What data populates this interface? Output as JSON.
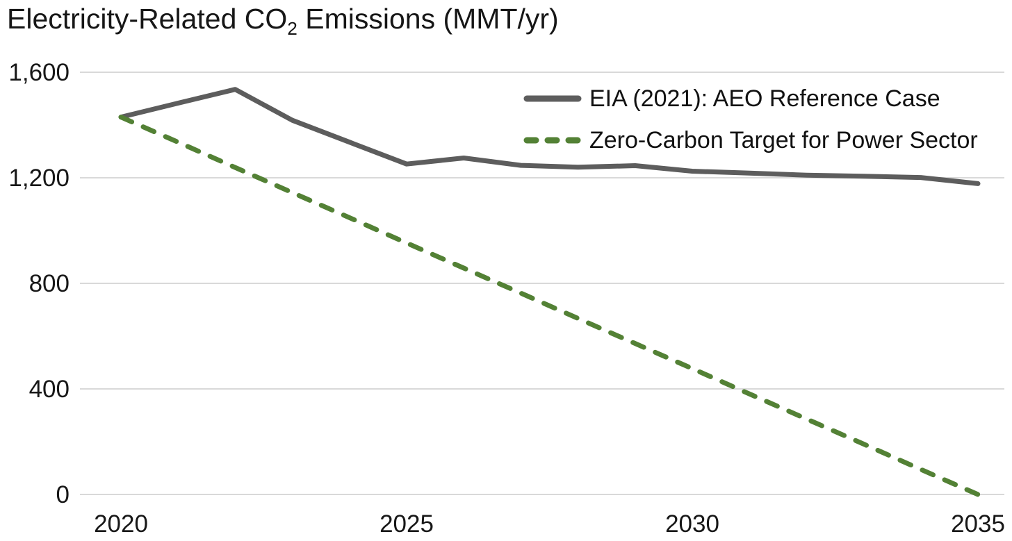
{
  "title": {
    "prefix": "Electricity-Related CO",
    "sub": "2",
    "suffix": " Emissions (MMT/yr)"
  },
  "legend": [
    {
      "label": "EIA (2021): AEO Reference Case",
      "color": "#5d5d5d",
      "style": "solid"
    },
    {
      "label": "Zero-Carbon Target for Power Sector",
      "color": "#538135",
      "style": "dashed"
    }
  ],
  "colors": {
    "gridline": "#d9d9d9",
    "eia_line": "#5d5d5d",
    "target_line": "#538135",
    "text": "#171717"
  },
  "chart_data": {
    "type": "line",
    "title": "Electricity-Related CO2 Emissions (MMT/yr)",
    "xlabel": "",
    "ylabel": "",
    "x": [
      2020,
      2021,
      2022,
      2023,
      2024,
      2025,
      2026,
      2027,
      2028,
      2029,
      2030,
      2031,
      2032,
      2033,
      2034,
      2035
    ],
    "series": [
      {
        "name": "EIA (2021): AEO Reference Case",
        "color": "#5d5d5d",
        "style": "solid",
        "values": [
          1430,
          1483,
          1535,
          1418,
          1335,
          1252,
          1275,
          1247,
          1240,
          1246,
          1225,
          1218,
          1210,
          1206,
          1201,
          1178
        ]
      },
      {
        "name": "Zero-Carbon Target for Power Sector",
        "color": "#538135",
        "style": "dashed",
        "values": [
          1430,
          1335,
          1239,
          1144,
          1049,
          953,
          858,
          763,
          667,
          572,
          477,
          381,
          286,
          191,
          95,
          0
        ]
      }
    ],
    "ylim": [
      0,
      1600
    ],
    "y_ticks": [
      0,
      400,
      800,
      1200,
      1600
    ],
    "y_tick_labels": [
      "0",
      "400",
      "800",
      "1,200",
      "1,600"
    ],
    "x_tick_years": [
      2020,
      2025,
      2030,
      2035
    ],
    "x_tick_labels": [
      "2020",
      "2025",
      "2030",
      "2035"
    ],
    "grid": true,
    "legend_position": "top-right"
  }
}
